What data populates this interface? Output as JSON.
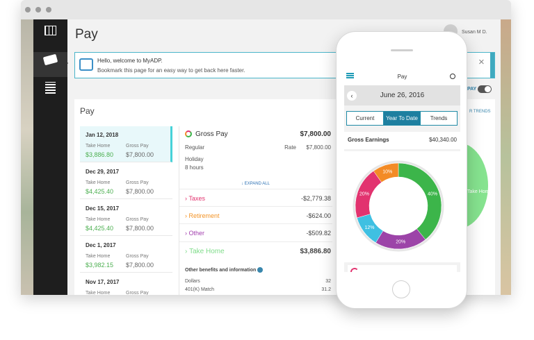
{
  "window": {
    "nav": [
      "Dashboard",
      "Pay",
      "Company"
    ],
    "page_title": "Pay",
    "user": "Susan M D.",
    "banner": {
      "title": "Hello, welcome to MyADP.",
      "text": "Bookmark this page for an easy way to get back here faster."
    },
    "toggle_label": "PAY",
    "trends_link": "R TRENDS",
    "trend_bubble": "Take Home",
    "panel_title": "Pay",
    "pay_list": [
      {
        "date": "Jan 12, 2018",
        "take_home_label": "Take Home",
        "take_home": "$3,886.80",
        "gross_label": "Gross Pay",
        "gross": "$7,800.00"
      },
      {
        "date": "Dec 29, 2017",
        "take_home_label": "Take Home",
        "take_home": "$4,425.40",
        "gross_label": "Gross Pay",
        "gross": "$7,800.00"
      },
      {
        "date": "Dec 15, 2017",
        "take_home_label": "Take Home",
        "take_home": "$4,425.40",
        "gross_label": "Gross Pay",
        "gross": "$7,800.00"
      },
      {
        "date": "Dec 1, 2017",
        "take_home_label": "Take Home",
        "take_home": "$3,982.15",
        "gross_label": "Gross Pay",
        "gross": "$7,800.00"
      },
      {
        "date": "Nov 17, 2017",
        "take_home_label": "Take Home",
        "gross_label": "Gross Pay"
      }
    ],
    "detail": {
      "gross_label": "Gross Pay",
      "gross": "$7,800.00",
      "regular": "Regular",
      "rate_label": "Rate",
      "rate": "$7,800.00",
      "holiday": "Holiday",
      "hours": "8 hours",
      "expand": "EXPAND ALL",
      "items": [
        {
          "label": "Taxes",
          "amount": "-$2,779.38",
          "color": "#e2336f"
        },
        {
          "label": "Retirement",
          "amount": "-$624.00",
          "color": "#f39325"
        },
        {
          "label": "Other",
          "amount": "-$509.82",
          "color": "#a23fae"
        },
        {
          "label": "Take Home",
          "amount": "$3,886.80",
          "color": "#7fdc8a"
        }
      ],
      "benefits_title": "Other benefits and information",
      "benefits": [
        {
          "label": "Dollars",
          "value": "32"
        },
        {
          "label": "401(K) Match",
          "value": "31.2"
        }
      ]
    }
  },
  "phone": {
    "title": "Pay",
    "date": "June 26, 2016",
    "tabs": [
      "Current",
      "Year To Date",
      "Trends"
    ],
    "active_tab": 1,
    "earnings_label": "Gross Earnings",
    "earnings": "$40,340.00",
    "donut": [
      {
        "value": 40,
        "label": "40%",
        "color": "#3cb54a"
      },
      {
        "value": 20,
        "label": "20%",
        "color": "#9c44a8"
      },
      {
        "value": 12,
        "label": "12%",
        "color": "#3fc0e2"
      },
      {
        "value": 20,
        "label": "20%",
        "color": "#e2336f"
      },
      {
        "value": 10,
        "label": "10%",
        "color": "#f38b26"
      }
    ]
  }
}
